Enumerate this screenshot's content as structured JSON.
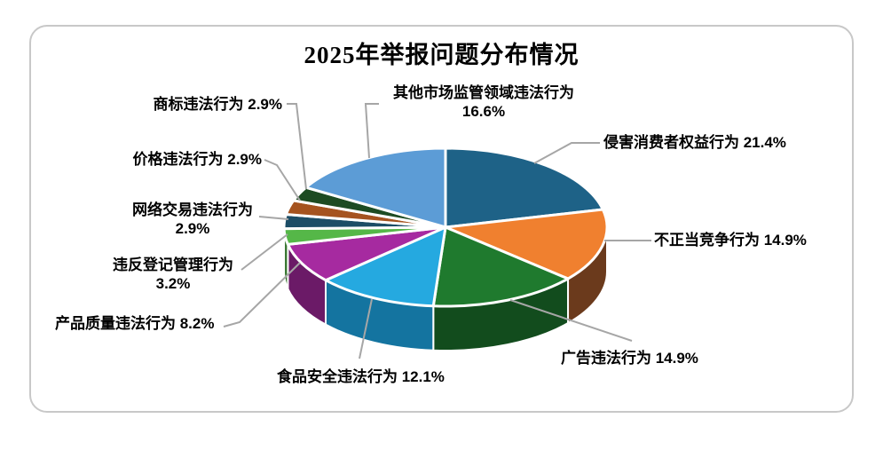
{
  "page": {
    "background_color": "#FFFFFF",
    "frame_border_color": "#C8C8C8"
  },
  "chart_data": {
    "type": "pie",
    "style": "3d",
    "title": "2025年举报问题分布情况",
    "legend_position": "none",
    "label_format": "name value%",
    "label_text_color": "#000000",
    "leader_line_color": "#A6A6A6",
    "start_angle_deg": 0,
    "direction": "clockwise",
    "segments": [
      {
        "label": "侵害消费者权益行为",
        "value": 21.4,
        "color": "#1E6287",
        "side_color": "#123D54"
      },
      {
        "label": "不正当竞争行为",
        "value": 14.9,
        "color": "#F0802F",
        "side_color": "#6B3A1C"
      },
      {
        "label": "广告违法行为",
        "value": 14.9,
        "color": "#1F7A2E",
        "side_color": "#124C1D"
      },
      {
        "label": "食品安全违法行为",
        "value": 12.1,
        "color": "#25A9E0",
        "side_color": "#1474A0"
      },
      {
        "label": "产品质量违法行为",
        "value": 8.2,
        "color": "#A62AA0",
        "side_color": "#6B1A67"
      },
      {
        "label": "违反登记管理行为",
        "value": 3.2,
        "color": "#55B748",
        "side_color": "#35742D"
      },
      {
        "label": "网络交易违法行为",
        "value": 2.9,
        "color": "#1C4D66",
        "side_color": "#102E3E"
      },
      {
        "label": "价格违法行为",
        "value": 2.9,
        "color": "#A5531F",
        "side_color": "#663312"
      },
      {
        "label": "商标违法行为",
        "value": 2.9,
        "color": "#1D4B22",
        "side_color": "#112B14"
      },
      {
        "label": "其他市场监管领域违法行为",
        "value": 16.6,
        "color": "#5C9CD6",
        "side_color": "#386289"
      }
    ]
  }
}
